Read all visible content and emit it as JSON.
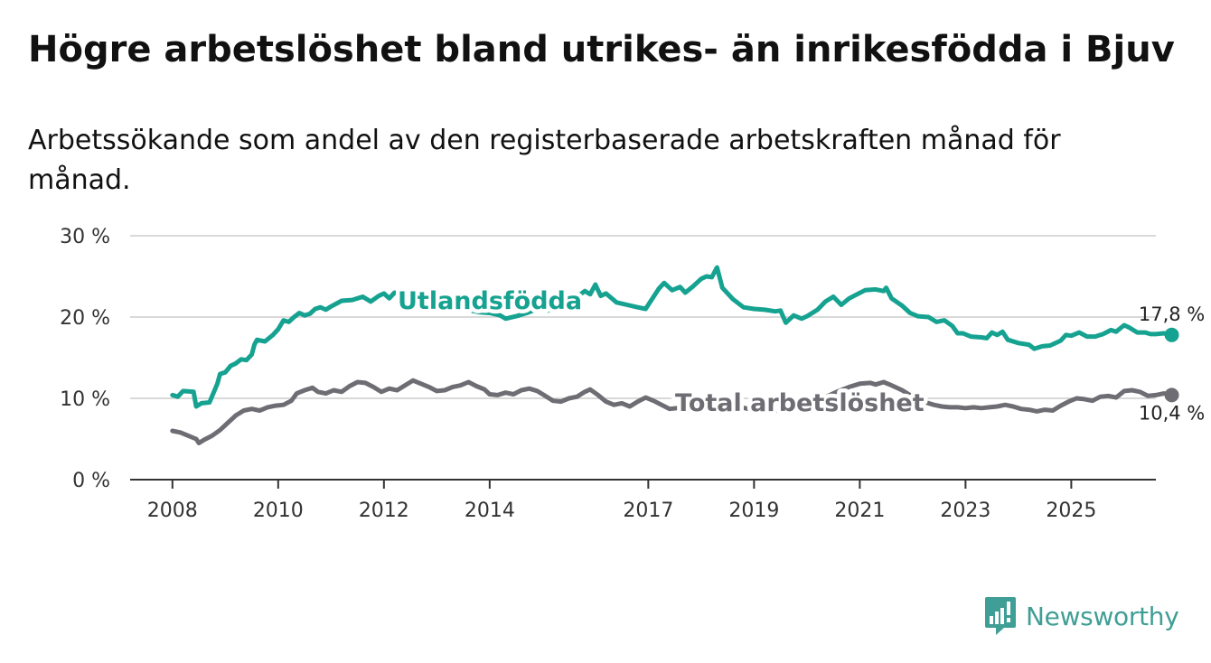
{
  "title": "Högre arbetslöshet bland utrikes- än inrikesfödda i Bjuv",
  "subtitle": "Arbetssökande som andel av den registerbaserade arbetskraften månad för månad.",
  "brand": "Newsworthy",
  "colors": {
    "foreign_born": "#16a290",
    "total": "#6e6d73",
    "grid": "#d9d9d9",
    "axis": "#333333",
    "brand": "#3f9e95"
  },
  "chart_data": {
    "type": "line",
    "title": "Högre arbetslöshet bland utrikes- än inrikesfödda i Bjuv",
    "subtitle": "Arbetssökande som andel av den registerbaserade arbetskraften månad för månad.",
    "xlabel": "",
    "ylabel": "",
    "ylim": [
      0,
      30
    ],
    "xlim": [
      2007.2,
      2026.6
    ],
    "y_ticks": [
      0,
      10,
      20,
      30
    ],
    "y_tick_labels": [
      "0 %",
      "10 %",
      "20 %",
      "30 %"
    ],
    "x_ticks": [
      2008,
      2010,
      2012,
      2014,
      2017,
      2019,
      2021,
      2023,
      2025
    ],
    "x_tick_labels": [
      "2008",
      "2010",
      "2012",
      "2014",
      "2017",
      "2019",
      "2021",
      "2023",
      "2025"
    ],
    "grid": true,
    "series": [
      {
        "name": "Utlandsfödda",
        "end_label": "17,8 %",
        "points": [
          [
            2008.0,
            10.4
          ],
          [
            2008.1,
            10.2
          ],
          [
            2008.2,
            10.9
          ],
          [
            2008.4,
            10.8
          ],
          [
            2008.45,
            9.0
          ],
          [
            2008.55,
            9.4
          ],
          [
            2008.7,
            9.5
          ],
          [
            2008.85,
            11.8
          ],
          [
            2008.9,
            13.0
          ],
          [
            2009.0,
            13.2
          ],
          [
            2009.1,
            14.0
          ],
          [
            2009.2,
            14.3
          ],
          [
            2009.3,
            14.8
          ],
          [
            2009.4,
            14.7
          ],
          [
            2009.5,
            15.4
          ],
          [
            2009.55,
            16.6
          ],
          [
            2009.6,
            17.2
          ],
          [
            2009.75,
            17.0
          ],
          [
            2009.9,
            17.8
          ],
          [
            2010.0,
            18.5
          ],
          [
            2010.1,
            19.6
          ],
          [
            2010.2,
            19.4
          ],
          [
            2010.3,
            20.0
          ],
          [
            2010.4,
            20.5
          ],
          [
            2010.5,
            20.2
          ],
          [
            2010.6,
            20.4
          ],
          [
            2010.7,
            21.0
          ],
          [
            2010.8,
            21.2
          ],
          [
            2010.9,
            20.9
          ],
          [
            2011.0,
            21.3
          ],
          [
            2011.2,
            22.0
          ],
          [
            2011.4,
            22.1
          ],
          [
            2011.6,
            22.5
          ],
          [
            2011.75,
            21.9
          ],
          [
            2011.9,
            22.6
          ],
          [
            2012.0,
            22.9
          ],
          [
            2012.1,
            22.3
          ],
          [
            2012.2,
            23.0
          ],
          [
            2012.4,
            22.8
          ],
          [
            2012.6,
            22.6
          ],
          [
            2012.9,
            22.0
          ],
          [
            2013.2,
            21.5
          ],
          [
            2013.5,
            21.0
          ],
          [
            2013.8,
            20.6
          ],
          [
            2014.0,
            20.5
          ],
          [
            2014.2,
            20.2
          ],
          [
            2014.3,
            19.8
          ],
          [
            2014.5,
            20.1
          ],
          [
            2014.7,
            20.5
          ],
          [
            2014.9,
            21.0
          ],
          [
            2015.1,
            20.8
          ],
          [
            2015.3,
            21.3
          ],
          [
            2015.6,
            22.2
          ],
          [
            2015.8,
            23.2
          ],
          [
            2015.9,
            22.8
          ],
          [
            2016.0,
            24.0
          ],
          [
            2016.1,
            22.6
          ],
          [
            2016.2,
            22.9
          ],
          [
            2016.4,
            21.8
          ],
          [
            2016.6,
            21.5
          ],
          [
            2016.8,
            21.2
          ],
          [
            2016.95,
            21.0
          ],
          [
            2017.1,
            22.5
          ],
          [
            2017.2,
            23.5
          ],
          [
            2017.3,
            24.2
          ],
          [
            2017.45,
            23.3
          ],
          [
            2017.6,
            23.7
          ],
          [
            2017.7,
            23.0
          ],
          [
            2017.85,
            23.8
          ],
          [
            2018.0,
            24.7
          ],
          [
            2018.1,
            25.0
          ],
          [
            2018.2,
            24.9
          ],
          [
            2018.3,
            26.1
          ],
          [
            2018.4,
            23.6
          ],
          [
            2018.6,
            22.2
          ],
          [
            2018.8,
            21.2
          ],
          [
            2019.0,
            21.0
          ],
          [
            2019.2,
            20.9
          ],
          [
            2019.4,
            20.7
          ],
          [
            2019.5,
            20.8
          ],
          [
            2019.6,
            19.3
          ],
          [
            2019.75,
            20.2
          ],
          [
            2019.9,
            19.8
          ],
          [
            2020.0,
            20.1
          ],
          [
            2020.2,
            20.9
          ],
          [
            2020.35,
            21.9
          ],
          [
            2020.5,
            22.5
          ],
          [
            2020.65,
            21.5
          ],
          [
            2020.8,
            22.3
          ],
          [
            2020.95,
            22.8
          ],
          [
            2021.1,
            23.3
          ],
          [
            2021.3,
            23.4
          ],
          [
            2021.45,
            23.2
          ],
          [
            2021.5,
            23.6
          ],
          [
            2021.6,
            22.3
          ],
          [
            2021.8,
            21.4
          ],
          [
            2021.95,
            20.5
          ],
          [
            2022.1,
            20.1
          ],
          [
            2022.3,
            20.0
          ],
          [
            2022.45,
            19.4
          ],
          [
            2022.6,
            19.6
          ],
          [
            2022.75,
            18.9
          ],
          [
            2022.85,
            18.0
          ],
          [
            2022.95,
            18.0
          ],
          [
            2023.1,
            17.6
          ],
          [
            2023.3,
            17.5
          ],
          [
            2023.4,
            17.4
          ],
          [
            2023.5,
            18.1
          ],
          [
            2023.6,
            17.8
          ],
          [
            2023.7,
            18.2
          ],
          [
            2023.8,
            17.2
          ],
          [
            2024.0,
            16.8
          ],
          [
            2024.2,
            16.6
          ],
          [
            2024.3,
            16.1
          ],
          [
            2024.45,
            16.4
          ],
          [
            2024.6,
            16.5
          ],
          [
            2024.8,
            17.1
          ],
          [
            2024.9,
            17.8
          ],
          [
            2025.0,
            17.7
          ],
          [
            2025.15,
            18.1
          ],
          [
            2025.3,
            17.6
          ],
          [
            2025.45,
            17.6
          ],
          [
            2025.6,
            17.9
          ],
          [
            2025.75,
            18.4
          ],
          [
            2025.85,
            18.2
          ],
          [
            2026.0,
            19.0
          ],
          [
            2026.1,
            18.7
          ],
          [
            2026.25,
            18.1
          ],
          [
            2026.4,
            18.1
          ],
          [
            2026.5,
            17.9
          ],
          [
            2026.6,
            17.9
          ],
          [
            2026.75,
            18.0
          ],
          [
            2026.9,
            17.8
          ]
        ]
      },
      {
        "name": "Total arbetslöshet",
        "end_label": "10,4 %",
        "points": [
          [
            2008.0,
            6.0
          ],
          [
            2008.15,
            5.8
          ],
          [
            2008.3,
            5.4
          ],
          [
            2008.45,
            5.0
          ],
          [
            2008.5,
            4.5
          ],
          [
            2008.6,
            4.9
          ],
          [
            2008.75,
            5.4
          ],
          [
            2008.9,
            6.1
          ],
          [
            2009.05,
            7.0
          ],
          [
            2009.2,
            7.9
          ],
          [
            2009.35,
            8.5
          ],
          [
            2009.5,
            8.7
          ],
          [
            2009.65,
            8.5
          ],
          [
            2009.8,
            8.9
          ],
          [
            2009.95,
            9.1
          ],
          [
            2010.1,
            9.2
          ],
          [
            2010.25,
            9.7
          ],
          [
            2010.35,
            10.6
          ],
          [
            2010.5,
            11.0
          ],
          [
            2010.65,
            11.3
          ],
          [
            2010.75,
            10.8
          ],
          [
            2010.9,
            10.6
          ],
          [
            2011.05,
            11.0
          ],
          [
            2011.2,
            10.8
          ],
          [
            2011.35,
            11.5
          ],
          [
            2011.5,
            12.0
          ],
          [
            2011.65,
            11.9
          ],
          [
            2011.8,
            11.4
          ],
          [
            2011.95,
            10.8
          ],
          [
            2012.1,
            11.2
          ],
          [
            2012.25,
            11.0
          ],
          [
            2012.4,
            11.6
          ],
          [
            2012.55,
            12.2
          ],
          [
            2012.7,
            11.8
          ],
          [
            2012.85,
            11.4
          ],
          [
            2013.0,
            10.9
          ],
          [
            2013.15,
            11.0
          ],
          [
            2013.3,
            11.4
          ],
          [
            2013.45,
            11.6
          ],
          [
            2013.6,
            12.0
          ],
          [
            2013.75,
            11.5
          ],
          [
            2013.9,
            11.1
          ],
          [
            2014.0,
            10.5
          ],
          [
            2014.15,
            10.4
          ],
          [
            2014.3,
            10.7
          ],
          [
            2014.45,
            10.5
          ],
          [
            2014.6,
            11.0
          ],
          [
            2014.75,
            11.2
          ],
          [
            2014.9,
            10.9
          ],
          [
            2015.05,
            10.3
          ],
          [
            2015.2,
            9.7
          ],
          [
            2015.35,
            9.6
          ],
          [
            2015.5,
            10.0
          ],
          [
            2015.65,
            10.2
          ],
          [
            2015.8,
            10.8
          ],
          [
            2015.9,
            11.1
          ],
          [
            2016.05,
            10.4
          ],
          [
            2016.2,
            9.6
          ],
          [
            2016.35,
            9.2
          ],
          [
            2016.5,
            9.4
          ],
          [
            2016.65,
            9.0
          ],
          [
            2016.8,
            9.6
          ],
          [
            2016.95,
            10.1
          ],
          [
            2017.1,
            9.7
          ],
          [
            2017.25,
            9.2
          ],
          [
            2017.4,
            8.7
          ],
          [
            2017.55,
            8.8
          ],
          [
            2017.7,
            8.6
          ],
          [
            2017.85,
            9.2
          ],
          [
            2018.0,
            9.9
          ],
          [
            2018.15,
            9.8
          ],
          [
            2018.3,
            9.2
          ],
          [
            2018.45,
            9.0
          ],
          [
            2018.6,
            9.2
          ],
          [
            2018.75,
            8.9
          ],
          [
            2018.9,
            8.7
          ],
          [
            2019.05,
            8.9
          ],
          [
            2019.2,
            8.5
          ],
          [
            2019.35,
            8.6
          ],
          [
            2019.5,
            8.4
          ],
          [
            2019.65,
            8.7
          ],
          [
            2019.8,
            8.9
          ],
          [
            2020.0,
            9.2
          ],
          [
            2020.2,
            9.8
          ],
          [
            2020.4,
            10.3
          ],
          [
            2020.6,
            10.9
          ],
          [
            2020.8,
            11.4
          ],
          [
            2021.0,
            11.8
          ],
          [
            2021.2,
            11.9
          ],
          [
            2021.3,
            11.7
          ],
          [
            2021.45,
            12.0
          ],
          [
            2021.6,
            11.6
          ],
          [
            2021.8,
            11.0
          ],
          [
            2022.0,
            10.2
          ],
          [
            2022.2,
            9.6
          ],
          [
            2022.4,
            9.2
          ],
          [
            2022.55,
            9.0
          ],
          [
            2022.7,
            8.9
          ],
          [
            2022.85,
            8.9
          ],
          [
            2023.0,
            8.8
          ],
          [
            2023.15,
            8.9
          ],
          [
            2023.3,
            8.8
          ],
          [
            2023.45,
            8.9
          ],
          [
            2023.6,
            9.0
          ],
          [
            2023.75,
            9.2
          ],
          [
            2023.9,
            9.0
          ],
          [
            2024.05,
            8.7
          ],
          [
            2024.2,
            8.6
          ],
          [
            2024.35,
            8.4
          ],
          [
            2024.5,
            8.6
          ],
          [
            2024.65,
            8.5
          ],
          [
            2024.8,
            9.1
          ],
          [
            2024.95,
            9.6
          ],
          [
            2025.1,
            10.0
          ],
          [
            2025.25,
            9.9
          ],
          [
            2025.4,
            9.7
          ],
          [
            2025.55,
            10.2
          ],
          [
            2025.7,
            10.3
          ],
          [
            2025.85,
            10.1
          ],
          [
            2026.0,
            10.9
          ],
          [
            2026.15,
            11.0
          ],
          [
            2026.3,
            10.8
          ],
          [
            2026.45,
            10.3
          ],
          [
            2026.6,
            10.4
          ],
          [
            2026.75,
            10.6
          ],
          [
            2026.9,
            10.4
          ]
        ]
      }
    ]
  }
}
